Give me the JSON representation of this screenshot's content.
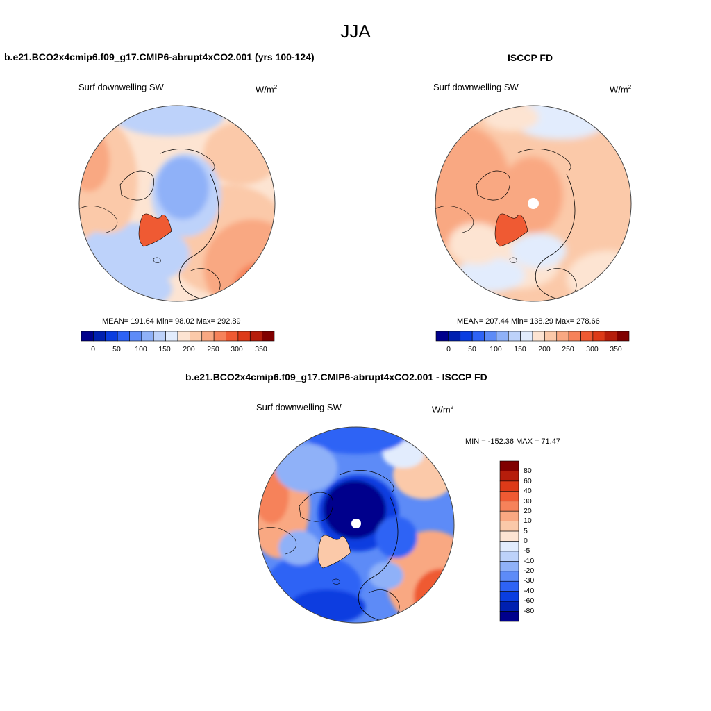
{
  "figure": {
    "season": "JJA"
  },
  "panels": {
    "model": {
      "title": "b.e21.BCO2x4cmip6.f09_g17.CMIP6-abrupt4xCO2.001 (yrs 100-124)",
      "variable": "Surf downwelling SW",
      "units_base": "W/m",
      "units_exp": "2",
      "stats": "MEAN= 191.64  Min=  98.02  Max= 292.89"
    },
    "obs": {
      "title": "ISCCP FD",
      "variable": "Surf downwelling SW",
      "units_base": "W/m",
      "units_exp": "2",
      "stats": "MEAN= 207.44  Min= 138.29  Max= 278.66"
    },
    "diff": {
      "title": "b.e21.BCO2x4cmip6.f09_g17.CMIP6-abrupt4xCO2.001 - ISCCP FD",
      "variable": "Surf downwelling SW",
      "units_base": "W/m",
      "units_exp": "2",
      "stats": "MIN = -152.36 MAX =  71.47"
    }
  },
  "colorbars": {
    "abs": {
      "tick_labels": [
        "0",
        "50",
        "100",
        "150",
        "200",
        "250",
        "300",
        "350"
      ],
      "colors": [
        "#00008c",
        "#0020b0",
        "#0a3ee0",
        "#2e63f5",
        "#5d8bf7",
        "#8fb1f8",
        "#bdd2fa",
        "#e2ecfd",
        "#fde4d2",
        "#fbc9a9",
        "#f9a882",
        "#f6825a",
        "#ef5a33",
        "#dd3a18",
        "#b61d0b",
        "#800000"
      ]
    },
    "diff": {
      "tick_labels": [
        "80",
        "60",
        "40",
        "30",
        "20",
        "10",
        "5",
        "0",
        "-5",
        "-10",
        "-20",
        "-30",
        "-40",
        "-60",
        "-80"
      ],
      "colors": [
        "#800000",
        "#b61d0b",
        "#dd3a18",
        "#ef5a33",
        "#f6825a",
        "#f9a882",
        "#fbc9a9",
        "#fde4d2",
        "#e2ecfd",
        "#bdd2fa",
        "#8fb1f8",
        "#5d8bf7",
        "#2e63f5",
        "#0a3ee0",
        "#0020b0",
        "#00008c"
      ]
    }
  },
  "palette": {
    "land_line": "#000000",
    "map_border": "#444444"
  }
}
